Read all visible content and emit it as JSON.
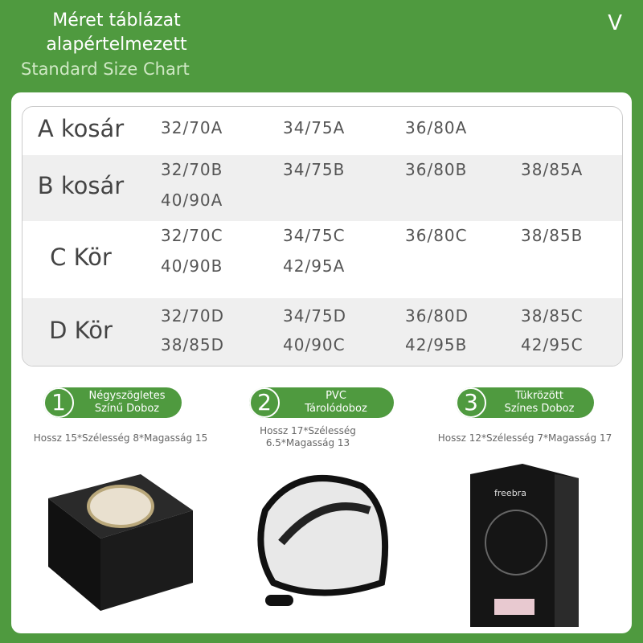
{
  "header": {
    "title_line1": "Méret táblázat",
    "title_line2": "alapértelmezett",
    "subtitle": "Standard Size Chart",
    "chevron_icon": "chevron-down-icon"
  },
  "size_table": {
    "rows": [
      {
        "label": "A kosár",
        "sizes": [
          "32/70A",
          "34/75A",
          "36/80A"
        ]
      },
      {
        "label": "B kosár",
        "sizes": [
          "32/70B",
          "34/75B",
          "36/80B",
          "38/85A",
          "40/90A"
        ]
      },
      {
        "label": "C Kör",
        "sizes": [
          "32/70C",
          "34/75C",
          "36/80C",
          "38/85B",
          "40/90B",
          "42/95A"
        ]
      },
      {
        "label": "D Kör",
        "sizes": [
          "32/70D",
          "34/75D",
          "36/80D",
          "38/85C",
          "38/85D",
          "40/90C",
          "42/95B",
          "42/95C"
        ]
      }
    ]
  },
  "packages": [
    {
      "number": "1",
      "name_line1": "Négyszögletes",
      "name_line2": "Színű Doboz",
      "dims_line1": "Hossz 15*Szélesség 8*Magasság 15",
      "dims_line2": ""
    },
    {
      "number": "2",
      "name_line1": "PVC",
      "name_line2": "Tárolódoboz",
      "dims_line1": "Hossz 17*Szélesség",
      "dims_line2": "6.5*Magasság 13"
    },
    {
      "number": "3",
      "name_line1": "Tükrözött",
      "name_line2": "Színes Doboz",
      "dims_line1": "Hossz 12*Szélesség 7*Magasság 17",
      "dims_line2": ""
    }
  ],
  "brand_logo": "freebra",
  "colors": {
    "accent": "#4f9a3f"
  }
}
